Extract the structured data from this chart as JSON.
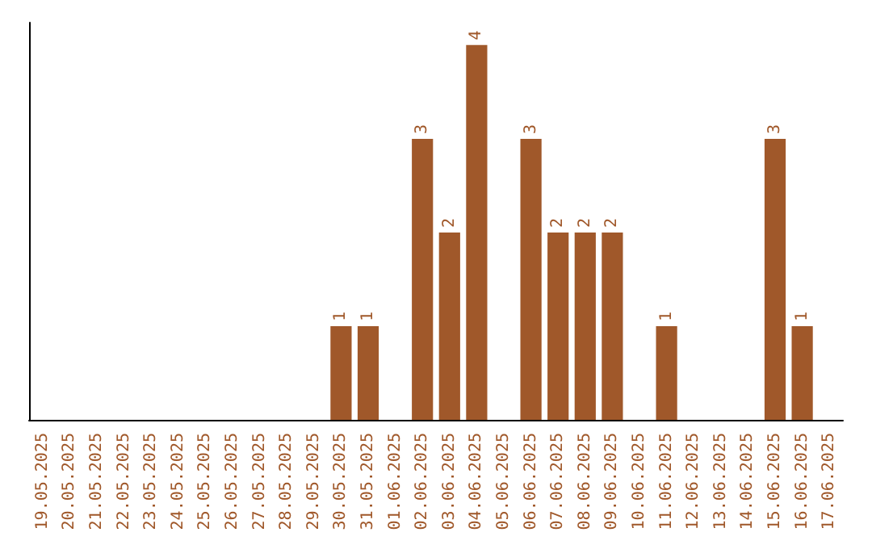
{
  "chart_data": {
    "type": "bar",
    "categories": [
      "19.05.2025",
      "20.05.2025",
      "21.05.2025",
      "22.05.2025",
      "23.05.2025",
      "24.05.2025",
      "25.05.2025",
      "26.05.2025",
      "27.05.2025",
      "28.05.2025",
      "29.05.2025",
      "30.05.2025",
      "31.05.2025",
      "01.06.2025",
      "02.06.2025",
      "03.06.2025",
      "04.06.2025",
      "05.06.2025",
      "06.06.2025",
      "07.06.2025",
      "08.06.2025",
      "09.06.2025",
      "10.06.2025",
      "11.06.2025",
      "12.06.2025",
      "13.06.2025",
      "14.06.2025",
      "15.06.2025",
      "16.06.2025",
      "17.06.2025"
    ],
    "values": [
      0,
      0,
      0,
      0,
      0,
      0,
      0,
      0,
      0,
      0,
      0,
      1,
      1,
      0,
      3,
      2,
      4,
      0,
      3,
      2,
      2,
      2,
      0,
      1,
      0,
      0,
      0,
      3,
      1,
      0
    ],
    "value_labels": [
      null,
      null,
      null,
      null,
      null,
      null,
      null,
      null,
      null,
      null,
      null,
      "1",
      "1",
      null,
      "3",
      "2",
      "4",
      null,
      "3",
      "2",
      "2",
      "2",
      null,
      "1",
      null,
      null,
      null,
      "3",
      "1",
      null
    ],
    "color": "#a0582a",
    "tick_labels": "x",
    "grid": false
  }
}
